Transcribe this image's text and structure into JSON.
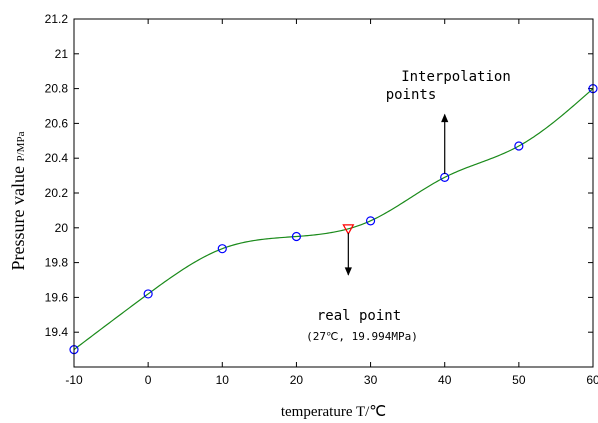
{
  "chart_data": {
    "type": "line",
    "title": "",
    "xlabel": "temperature T/℃",
    "ylabel": "Pressure value",
    "ylabel_unit": "P/MPa",
    "xlim": [
      -10,
      60
    ],
    "ylim": [
      19.2,
      21.2
    ],
    "xticks": [
      "-10",
      "0",
      "10",
      "20",
      "30",
      "40",
      "50",
      "60"
    ],
    "yticks": [
      "19.4",
      "19.6",
      "19.8",
      "20",
      "20.2",
      "20.4",
      "20.6",
      "20.8",
      "21",
      "21.2"
    ],
    "grid": false,
    "series": [
      {
        "role": "fitted-curve",
        "color": "#1a8a1a",
        "x": [
          -10,
          0,
          10,
          20,
          30,
          40,
          50,
          60
        ],
        "y": [
          19.3,
          19.62,
          19.88,
          19.95,
          20.04,
          20.29,
          20.47,
          20.8
        ]
      },
      {
        "role": "interpolation-points",
        "marker": "circle",
        "color": "#0000ff",
        "x": [
          -10,
          0,
          10,
          20,
          30,
          40,
          50,
          60
        ],
        "y": [
          19.3,
          19.62,
          19.88,
          19.95,
          20.04,
          20.29,
          20.47,
          20.8
        ]
      },
      {
        "role": "real-point",
        "marker": "triangle-down",
        "color": "#ff0000",
        "x": [
          27
        ],
        "y": [
          19.994
        ]
      }
    ],
    "annotations": [
      {
        "id": "interpolation",
        "line1": "Interpolation",
        "line2": "points",
        "arrow_direction": "up",
        "arrow_from": [
          40,
          20.31
        ],
        "arrow_to": [
          40,
          20.65
        ]
      },
      {
        "id": "real",
        "line1": "real point",
        "line2": "(27℃, 19.994MPa)",
        "arrow_direction": "down",
        "arrow_from": [
          27,
          19.97
        ],
        "arrow_to": [
          27,
          19.73
        ]
      }
    ]
  }
}
